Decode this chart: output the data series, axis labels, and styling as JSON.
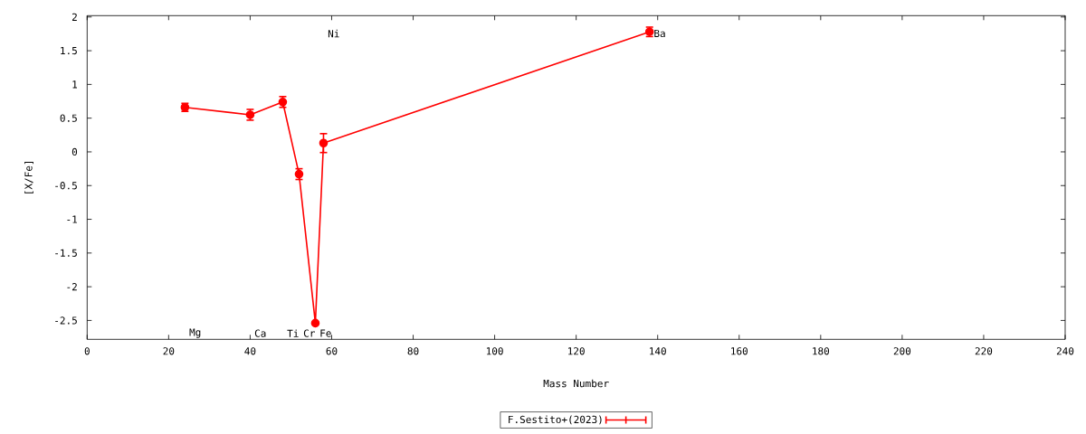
{
  "chart_data": {
    "type": "line",
    "xlabel": "Mass Number",
    "ylabel": "[X/Fe]",
    "x": [
      24,
      40,
      48,
      52,
      56,
      58,
      138
    ],
    "series": [
      {
        "name": "F.Sestito+(2023)",
        "color": "#ff0000",
        "values": [
          0.66,
          0.55,
          0.74,
          -0.33,
          -2.54,
          0.13,
          1.78
        ],
        "errors": [
          0.06,
          0.08,
          0.08,
          0.08,
          null,
          0.14,
          0.07
        ]
      }
    ],
    "xlim": [
      0,
      240
    ],
    "xticks": [
      0,
      20,
      40,
      60,
      80,
      100,
      120,
      140,
      160,
      180,
      200,
      220,
      240
    ],
    "ylim": [
      -2.78,
      2.02
    ],
    "yticks": [
      -2.5,
      -2,
      -1.5,
      -1,
      -0.5,
      0,
      0.5,
      1,
      1.5,
      2
    ],
    "annotations": [
      "Mg",
      "Ca",
      "Ti",
      "Cr",
      "Fe",
      "Ni",
      "Ba"
    ],
    "legend": "bottom",
    "marker": "circle",
    "line_style": "solid"
  }
}
